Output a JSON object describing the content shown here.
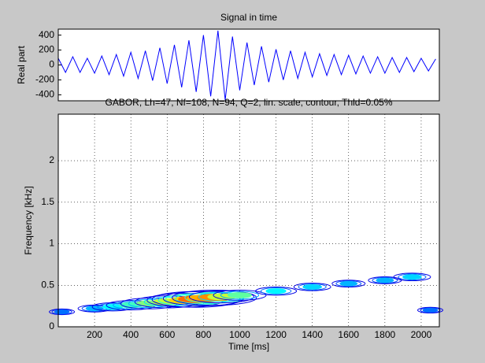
{
  "chart_data": [
    {
      "type": "line",
      "title": "Signal in time",
      "ylabel": "Real part",
      "color": "#0000ff",
      "x": [
        0,
        40,
        80,
        120,
        160,
        200,
        240,
        280,
        320,
        360,
        400,
        440,
        480,
        520,
        560,
        600,
        640,
        680,
        720,
        760,
        800,
        840,
        880,
        920,
        960,
        1000,
        1040,
        1080,
        1120,
        1160,
        1200,
        1240,
        1280,
        1320,
        1360,
        1400,
        1440,
        1480,
        1520,
        1560,
        1600,
        1640,
        1680,
        1720,
        1760,
        1800,
        1840,
        1880,
        1920,
        1960,
        2000,
        2040,
        2080
      ],
      "values": [
        90,
        -100,
        110,
        -100,
        90,
        -110,
        120,
        -130,
        140,
        -150,
        170,
        -180,
        190,
        -210,
        230,
        -250,
        270,
        -300,
        330,
        -360,
        400,
        -420,
        460,
        -470,
        380,
        -340,
        300,
        -270,
        250,
        -230,
        210,
        -200,
        190,
        -180,
        170,
        -160,
        150,
        -140,
        140,
        -130,
        130,
        -120,
        120,
        -110,
        110,
        -110,
        100,
        -100,
        100,
        -90,
        90,
        -80,
        80
      ],
      "xlim": [
        0,
        2100
      ],
      "ylim": [
        -480,
        480
      ],
      "yticks": [
        -400,
        -200,
        0,
        200,
        400
      ],
      "grid": false
    },
    {
      "type": "contour",
      "title": "GABOR, Lh=47, Nf=108, N=94, Q=2, lin. scale, contour, Thld=0.05%",
      "xlabel": "Time [ms]",
      "ylabel": "Frequency [kHz]",
      "x": [
        20,
        200,
        300,
        400,
        500,
        600,
        700,
        760,
        800,
        860,
        900,
        1000,
        1200,
        1400,
        1600,
        1800,
        1950,
        2050
      ],
      "y": [
        0.18,
        0.22,
        0.24,
        0.26,
        0.28,
        0.3,
        0.32,
        0.33,
        0.34,
        0.35,
        0.36,
        0.38,
        0.43,
        0.48,
        0.52,
        0.56,
        0.6,
        0.2
      ],
      "values": [
        0.2,
        0.3,
        0.4,
        0.5,
        0.6,
        0.7,
        0.85,
        1,
        0.9,
        0.95,
        0.7,
        0.55,
        0.4,
        0.35,
        0.3,
        0.3,
        0.35,
        0.2
      ],
      "xlim": [
        0,
        2100
      ],
      "ylim": [
        0,
        2.56
      ],
      "xticks": [
        200,
        400,
        600,
        800,
        1000,
        1200,
        1400,
        1600,
        1800,
        2000
      ],
      "yticks": [
        0,
        0.5,
        1,
        1.5,
        2
      ],
      "grid": true
    }
  ]
}
